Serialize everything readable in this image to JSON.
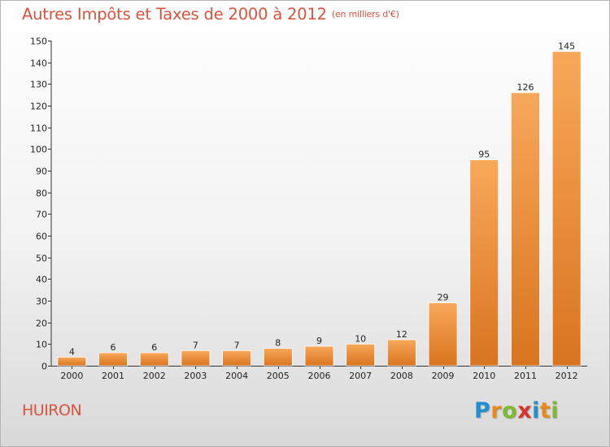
{
  "header": {
    "title": "Autres Impôts et Taxes de 2000 à 2012",
    "subtitle": "(en milliers d'€)"
  },
  "footer": {
    "town": "HUIRON",
    "logo_text": "Proxiti",
    "logo_colors": [
      "#1f8fd0",
      "#e8891d",
      "#7cba2f",
      "#d9342b",
      "#1f8fd0",
      "#e8891d",
      "#7cba2f"
    ]
  },
  "colors": {
    "bar_light": "#f8a85a",
    "bar_dark": "#d9741f",
    "accent": "#d9533f"
  },
  "chart_data": {
    "type": "bar",
    "title": "Autres Impôts et Taxes de 2000 à 2012",
    "subtitle": "(en milliers d'€)",
    "xlabel": "",
    "ylabel": "",
    "categories": [
      "2000",
      "2001",
      "2002",
      "2003",
      "2004",
      "2005",
      "2006",
      "2007",
      "2008",
      "2009",
      "2010",
      "2011",
      "2012"
    ],
    "values": [
      4,
      6,
      6,
      7,
      7,
      8,
      9,
      10,
      12,
      29,
      95,
      126,
      145
    ],
    "ylim": [
      0,
      150
    ],
    "yticks": [
      0,
      10,
      20,
      30,
      40,
      50,
      60,
      70,
      80,
      90,
      100,
      110,
      120,
      130,
      140,
      150
    ],
    "grid": false,
    "data_labels": true
  }
}
